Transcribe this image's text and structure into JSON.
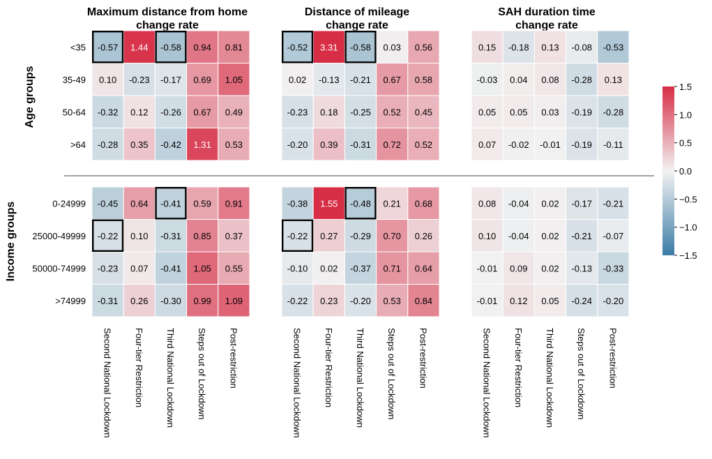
{
  "chart_data": {
    "type": "heatmap",
    "panels": [
      {
        "title_line1": "Maximum distance from home",
        "title_line2": "change rate"
      },
      {
        "title_line1": "Distance of mileage",
        "title_line2": "change rate"
      },
      {
        "title_line1": "SAH duration time",
        "title_line2": "change rate"
      }
    ],
    "columns": [
      "Second National Lockdown",
      "Four-tier Restriction",
      "Third National Lockdown",
      "Steps out of Lockdown",
      "Post-restriction"
    ],
    "groups": [
      {
        "label": "Age groups",
        "rows": [
          "<35",
          "35-49",
          "50-64",
          ">64"
        ]
      },
      {
        "label": "Income groups",
        "rows": [
          "0-24999",
          "25000-49999",
          "50000-74999",
          ">74999"
        ]
      }
    ],
    "values": [
      [
        [
          [
            -0.57,
            1.44,
            -0.58,
            0.94,
            0.81
          ],
          [
            0.1,
            -0.23,
            -0.17,
            0.69,
            1.05
          ],
          [
            -0.32,
            0.12,
            -0.26,
            0.67,
            0.49
          ],
          [
            -0.28,
            0.35,
            -0.42,
            1.31,
            0.53
          ]
        ],
        [
          [
            -0.52,
            3.31,
            -0.58,
            0.03,
            0.56
          ],
          [
            0.02,
            -0.13,
            -0.21,
            0.67,
            0.58
          ],
          [
            -0.23,
            0.18,
            -0.25,
            0.52,
            0.45
          ],
          [
            -0.2,
            0.39,
            -0.31,
            0.72,
            0.52
          ]
        ],
        [
          [
            0.15,
            -0.18,
            0.13,
            -0.08,
            -0.53
          ],
          [
            -0.03,
            0.04,
            0.08,
            -0.28,
            0.13
          ],
          [
            0.05,
            0.05,
            0.03,
            -0.19,
            -0.28
          ],
          [
            0.07,
            -0.02,
            -0.01,
            -0.19,
            -0.11
          ]
        ]
      ],
      [
        [
          [
            -0.45,
            0.64,
            -0.41,
            0.59,
            0.91
          ],
          [
            -0.22,
            0.1,
            -0.31,
            0.85,
            0.37
          ],
          [
            -0.23,
            0.07,
            -0.41,
            1.05,
            0.55
          ],
          [
            -0.31,
            0.26,
            -0.3,
            0.99,
            1.09
          ]
        ],
        [
          [
            -0.38,
            1.55,
            -0.48,
            0.21,
            0.68
          ],
          [
            -0.22,
            0.27,
            -0.29,
            0.7,
            0.26
          ],
          [
            -0.1,
            0.02,
            -0.37,
            0.71,
            0.64
          ],
          [
            -0.22,
            0.23,
            -0.2,
            0.53,
            0.84
          ]
        ],
        [
          [
            0.08,
            -0.04,
            0.02,
            -0.17,
            -0.21
          ],
          [
            0.1,
            -0.04,
            0.02,
            -0.21,
            -0.07
          ],
          [
            -0.01,
            0.09,
            0.02,
            -0.13,
            -0.33
          ],
          [
            -0.01,
            0.12,
            0.05,
            -0.24,
            -0.2
          ]
        ]
      ]
    ],
    "highlighted_cells": [
      {
        "group": 0,
        "panel": 0,
        "row": 0,
        "col": 0
      },
      {
        "group": 0,
        "panel": 0,
        "row": 0,
        "col": 2
      },
      {
        "group": 0,
        "panel": 1,
        "row": 0,
        "col": 0
      },
      {
        "group": 0,
        "panel": 1,
        "row": 0,
        "col": 2
      },
      {
        "group": 1,
        "panel": 0,
        "row": 0,
        "col": 2
      },
      {
        "group": 1,
        "panel": 0,
        "row": 1,
        "col": 0
      },
      {
        "group": 1,
        "panel": 1,
        "row": 0,
        "col": 2
      },
      {
        "group": 1,
        "panel": 1,
        "row": 1,
        "col": 0
      }
    ],
    "colorbar": {
      "range": [
        -1.5,
        1.5
      ],
      "ticks": [
        1.5,
        1.0,
        0.5,
        0.0,
        -0.5,
        -1.0,
        -1.5
      ],
      "tick_labels": [
        "1.5",
        "1.0",
        "0.5",
        "0.0",
        "−0.5",
        "−1.0",
        "−1.5"
      ],
      "color_low": "#3a7ca5",
      "color_mid": "#f2f2f2",
      "color_high": "#d72d45"
    },
    "colors": {
      "divider": "#808080",
      "highlight_border": "#000000",
      "text_dark": "#000000",
      "text_light": "#ffffff"
    }
  }
}
